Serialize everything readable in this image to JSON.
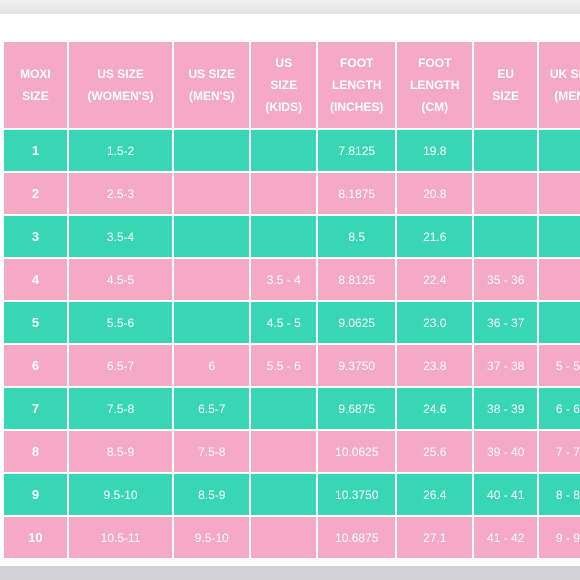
{
  "table": {
    "headers": [
      [
        "MOXI",
        "SIZE"
      ],
      [
        "US SIZE",
        "(WOMEN'S)"
      ],
      [
        "US SIZE",
        "(MEN'S)"
      ],
      [
        "US",
        "SIZE",
        "(KIDS)"
      ],
      [
        "FOOT",
        "LENGTH",
        "(INCHES)"
      ],
      [
        "FOOT",
        "LENGTH",
        "(CM)"
      ],
      [
        "EU",
        "SIZE"
      ],
      [
        "UK SIZ",
        "(MEN"
      ]
    ],
    "rows": [
      [
        "1",
        "1.5-2",
        "",
        "",
        "7.8125",
        "19.8",
        "",
        ""
      ],
      [
        "2",
        "2.5-3",
        "",
        "",
        "8.1875",
        "20.8",
        "",
        ""
      ],
      [
        "3",
        "3.5-4",
        "",
        "",
        "8.5",
        "21.6",
        "",
        ""
      ],
      [
        "4",
        "4.5-5",
        "",
        "3.5 - 4",
        "8.8125",
        "22.4",
        "35 - 36",
        ""
      ],
      [
        "5",
        "5.5-6",
        "",
        "4.5 - 5",
        "9.0625",
        "23.0",
        "36 - 37",
        ""
      ],
      [
        "6",
        "6.5-7",
        "6",
        "5.5 - 6",
        "9.3750",
        "23.8",
        "37 - 38",
        "5 - 5."
      ],
      [
        "7",
        "7.5-8",
        "6.5-7",
        "",
        "9.6875",
        "24.6",
        "38 - 39",
        "6 - 6."
      ],
      [
        "8",
        "8.5-9",
        "7.5-8",
        "",
        "10.0625",
        "25.6",
        "39 - 40",
        "7 - 7."
      ],
      [
        "9",
        "9.5-10",
        "8.5-9",
        "",
        "10.3750",
        "26.4",
        "40 - 41",
        "8 - 8."
      ],
      [
        "10",
        "10.5-11",
        "9.5-10",
        "",
        "10.6875",
        "27.1",
        "41 - 42",
        "9 - 9."
      ]
    ]
  },
  "colors": {
    "pink": "#f4a9c4",
    "teal": "#38d6b4",
    "text": "#ffffff"
  }
}
